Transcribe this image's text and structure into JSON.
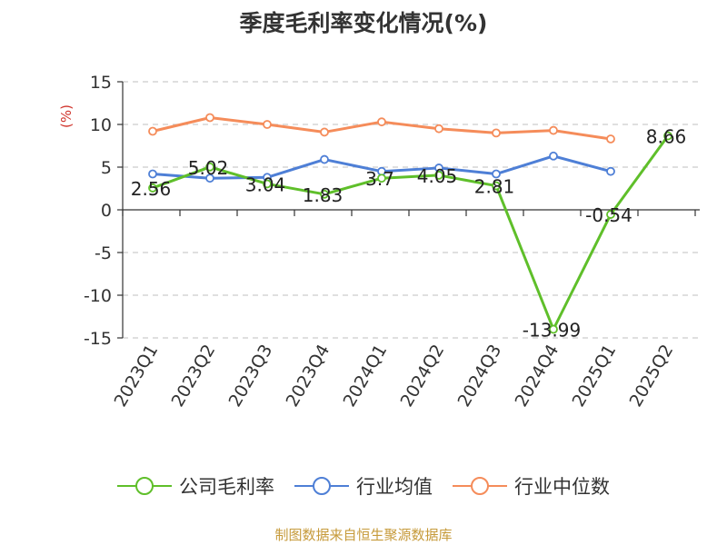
{
  "chart_data": {
    "type": "line",
    "title": "季度毛利率变化情况(%)",
    "ylabel": "(%)",
    "xlabel": "",
    "categories": [
      "2023Q1",
      "2023Q2",
      "2023Q3",
      "2023Q4",
      "2024Q1",
      "2024Q2",
      "2024Q3",
      "2024Q4",
      "2025Q1",
      "2025Q2"
    ],
    "ylim": [
      -15,
      15
    ],
    "yticks": [
      15,
      10,
      5,
      0,
      -5,
      -10,
      -15
    ],
    "grid": true,
    "legend_position": "bottom",
    "series": [
      {
        "name": "公司毛利率",
        "color": "#5fbf2a",
        "values": [
          2.56,
          5.02,
          3.04,
          1.83,
          3.7,
          4.05,
          2.81,
          -13.99,
          -0.54,
          8.66
        ],
        "labels": [
          "2.56",
          "5.02",
          "3.04",
          "1.83",
          "3.7",
          "4.05",
          "2.81",
          "-13.99",
          "-0.54",
          "8.66"
        ]
      },
      {
        "name": "行业均值",
        "color": "#4e7fd6",
        "values": [
          4.2,
          3.7,
          3.8,
          5.9,
          4.5,
          4.9,
          4.2,
          6.3,
          4.5,
          null
        ]
      },
      {
        "name": "行业中位数",
        "color": "#f58c5a",
        "values": [
          9.2,
          10.8,
          10.0,
          9.1,
          10.3,
          9.5,
          9.0,
          9.3,
          8.3,
          null
        ]
      }
    ]
  },
  "source_text": "制图数据来自恒生聚源数据库"
}
